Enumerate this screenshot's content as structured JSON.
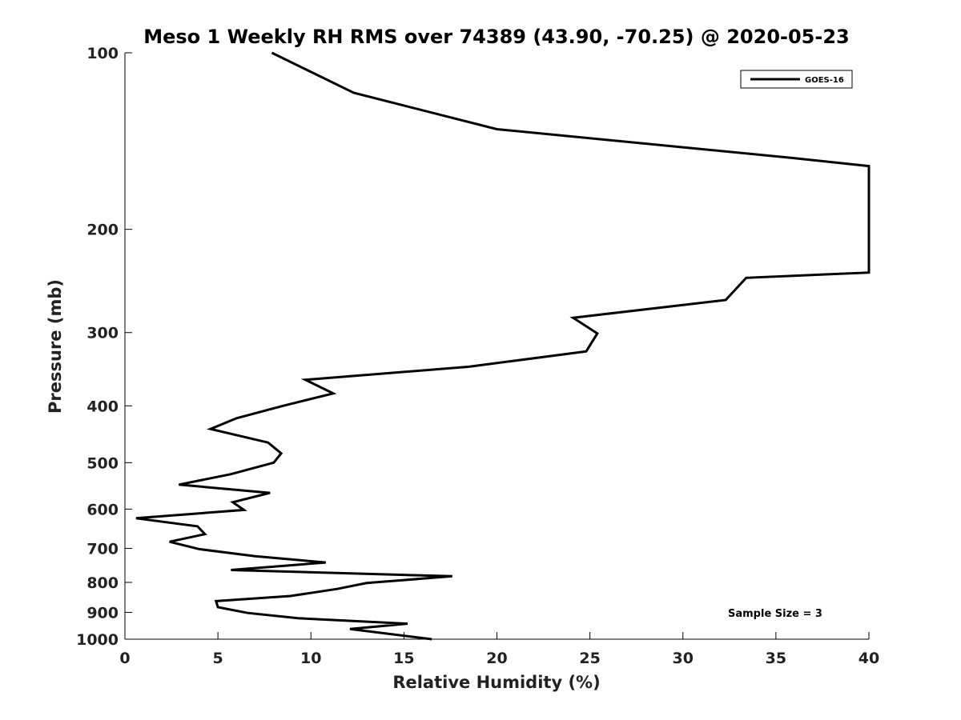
{
  "chart_data": {
    "type": "line",
    "title": "Meso 1 Weekly RH RMS over 74389 (43.90, -70.25) @ 2020-05-23",
    "xlabel": "Relative Humidity (%)",
    "ylabel": "Pressure (mb)",
    "xlim": [
      0,
      40
    ],
    "ylim": [
      100,
      1000
    ],
    "yscale": "log",
    "y_reversed": true,
    "x_ticks": [
      0,
      5,
      10,
      15,
      20,
      25,
      30,
      35,
      40
    ],
    "y_ticks": [
      100,
      200,
      300,
      400,
      500,
      600,
      700,
      800,
      900,
      1000
    ],
    "grid": false,
    "legend_position": "top-right",
    "annotation": "Sample Size = 3",
    "series": [
      {
        "name": "GOES-16",
        "color": "#000000",
        "points": [
          {
            "x": 7.9,
            "p": 100
          },
          {
            "x": 12.3,
            "p": 117
          },
          {
            "x": 20.0,
            "p": 135
          },
          {
            "x": 35.8,
            "p": 151
          },
          {
            "x": 40.0,
            "p": 156
          },
          {
            "x": 40.0,
            "p": 237
          },
          {
            "x": 33.4,
            "p": 242
          },
          {
            "x": 32.3,
            "p": 264
          },
          {
            "x": 24.1,
            "p": 283
          },
          {
            "x": 25.4,
            "p": 301
          },
          {
            "x": 24.8,
            "p": 323
          },
          {
            "x": 18.5,
            "p": 343
          },
          {
            "x": 9.7,
            "p": 361
          },
          {
            "x": 11.2,
            "p": 381
          },
          {
            "x": 8.5,
            "p": 400
          },
          {
            "x": 6.0,
            "p": 420
          },
          {
            "x": 4.6,
            "p": 438
          },
          {
            "x": 7.7,
            "p": 462
          },
          {
            "x": 8.4,
            "p": 482
          },
          {
            "x": 8.0,
            "p": 500
          },
          {
            "x": 5.7,
            "p": 523
          },
          {
            "x": 2.9,
            "p": 545
          },
          {
            "x": 7.8,
            "p": 563
          },
          {
            "x": 5.8,
            "p": 584
          },
          {
            "x": 6.4,
            "p": 602
          },
          {
            "x": 0.6,
            "p": 622
          },
          {
            "x": 3.9,
            "p": 642
          },
          {
            "x": 4.3,
            "p": 662
          },
          {
            "x": 2.4,
            "p": 682
          },
          {
            "x": 4.0,
            "p": 702
          },
          {
            "x": 7.0,
            "p": 722
          },
          {
            "x": 10.8,
            "p": 740
          },
          {
            "x": 5.7,
            "p": 762
          },
          {
            "x": 17.6,
            "p": 781
          },
          {
            "x": 13.0,
            "p": 802
          },
          {
            "x": 11.4,
            "p": 821
          },
          {
            "x": 8.9,
            "p": 844
          },
          {
            "x": 4.9,
            "p": 861
          },
          {
            "x": 5.0,
            "p": 882
          },
          {
            "x": 6.6,
            "p": 902
          },
          {
            "x": 9.3,
            "p": 921
          },
          {
            "x": 15.2,
            "p": 941
          },
          {
            "x": 12.1,
            "p": 961
          },
          {
            "x": 16.5,
            "p": 1000
          }
        ]
      }
    ]
  }
}
